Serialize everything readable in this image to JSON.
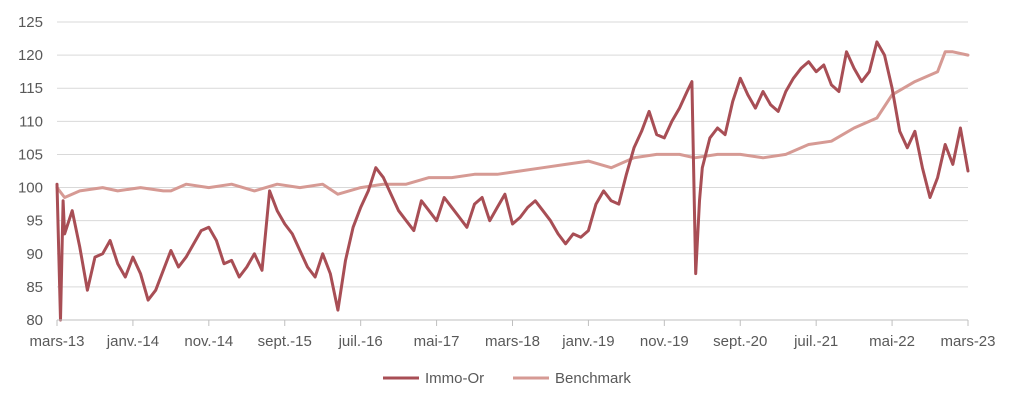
{
  "chart_data": {
    "type": "line",
    "title": "",
    "xlabel": "",
    "ylabel": "",
    "ylim": [
      80,
      125
    ],
    "yticks": [
      80,
      85,
      90,
      95,
      100,
      105,
      110,
      115,
      120,
      125
    ],
    "xlim": [
      "2013-03",
      "2023-03"
    ],
    "xticks": [
      {
        "date": "2013-03",
        "label": "mars-13"
      },
      {
        "date": "2014-01",
        "label": "janv.-14"
      },
      {
        "date": "2014-11",
        "label": "nov.-14"
      },
      {
        "date": "2015-09",
        "label": "sept.-15"
      },
      {
        "date": "2016-07",
        "label": "juil.-16"
      },
      {
        "date": "2017-05",
        "label": "mai-17"
      },
      {
        "date": "2018-03",
        "label": "mars-18"
      },
      {
        "date": "2019-01",
        "label": "janv.-19"
      },
      {
        "date": "2019-11",
        "label": "nov.-19"
      },
      {
        "date": "2020-09",
        "label": "sept.-20"
      },
      {
        "date": "2021-07",
        "label": "juil.-21"
      },
      {
        "date": "2022-05",
        "label": "mai-22"
      },
      {
        "date": "2023-03",
        "label": "mars-23"
      }
    ],
    "grid": "horizontal",
    "legend_position": "bottom",
    "series": [
      {
        "name": "Immo-Or",
        "color": "#a84e55",
        "points": [
          [
            "2013-03",
            100.5
          ],
          [
            "2013-03-15",
            80.0
          ],
          [
            "2013-03-25",
            98.0
          ],
          [
            "2013-04",
            93.0
          ],
          [
            "2013-05",
            96.5
          ],
          [
            "2013-06",
            91.0
          ],
          [
            "2013-07",
            84.5
          ],
          [
            "2013-08",
            89.5
          ],
          [
            "2013-09",
            90.0
          ],
          [
            "2013-10",
            92.0
          ],
          [
            "2013-11",
            88.5
          ],
          [
            "2013-12",
            86.5
          ],
          [
            "2014-01",
            89.5
          ],
          [
            "2014-02",
            87.0
          ],
          [
            "2014-03",
            83.0
          ],
          [
            "2014-04",
            84.5
          ],
          [
            "2014-05",
            87.5
          ],
          [
            "2014-06",
            90.5
          ],
          [
            "2014-07",
            88.0
          ],
          [
            "2014-08",
            89.5
          ],
          [
            "2014-09",
            91.5
          ],
          [
            "2014-10",
            93.5
          ],
          [
            "2014-11",
            94.0
          ],
          [
            "2014-12",
            92.0
          ],
          [
            "2015-01",
            88.5
          ],
          [
            "2015-02",
            89.0
          ],
          [
            "2015-03",
            86.5
          ],
          [
            "2015-04",
            88.0
          ],
          [
            "2015-05",
            90.0
          ],
          [
            "2015-06",
            87.5
          ],
          [
            "2015-07",
            99.5
          ],
          [
            "2015-08",
            96.5
          ],
          [
            "2015-09",
            94.5
          ],
          [
            "2015-10",
            93.0
          ],
          [
            "2015-11",
            90.5
          ],
          [
            "2015-12",
            88.0
          ],
          [
            "2016-01",
            86.5
          ],
          [
            "2016-02",
            90.0
          ],
          [
            "2016-03",
            87.0
          ],
          [
            "2016-04",
            81.5
          ],
          [
            "2016-05",
            89.0
          ],
          [
            "2016-06",
            94.0
          ],
          [
            "2016-07",
            97.0
          ],
          [
            "2016-08",
            99.5
          ],
          [
            "2016-09",
            103.0
          ],
          [
            "2016-10",
            101.5
          ],
          [
            "2016-11",
            99.0
          ],
          [
            "2016-12",
            96.5
          ],
          [
            "2017-01",
            95.0
          ],
          [
            "2017-02",
            93.5
          ],
          [
            "2017-03",
            98.0
          ],
          [
            "2017-04",
            96.5
          ],
          [
            "2017-05",
            95.0
          ],
          [
            "2017-06",
            98.5
          ],
          [
            "2017-07",
            97.0
          ],
          [
            "2017-08",
            95.5
          ],
          [
            "2017-09",
            94.0
          ],
          [
            "2017-10",
            97.5
          ],
          [
            "2017-11",
            98.5
          ],
          [
            "2017-12",
            95.0
          ],
          [
            "2018-01",
            97.0
          ],
          [
            "2018-02",
            99.0
          ],
          [
            "2018-03",
            94.5
          ],
          [
            "2018-04",
            95.5
          ],
          [
            "2018-05",
            97.0
          ],
          [
            "2018-06",
            98.0
          ],
          [
            "2018-07",
            96.5
          ],
          [
            "2018-08",
            95.0
          ],
          [
            "2018-09",
            93.0
          ],
          [
            "2018-10",
            91.5
          ],
          [
            "2018-11",
            93.0
          ],
          [
            "2018-12",
            92.5
          ],
          [
            "2019-01",
            93.5
          ],
          [
            "2019-02",
            97.5
          ],
          [
            "2019-03",
            99.5
          ],
          [
            "2019-04",
            98.0
          ],
          [
            "2019-05",
            97.5
          ],
          [
            "2019-06",
            102.0
          ],
          [
            "2019-07",
            106.0
          ],
          [
            "2019-08",
            108.5
          ],
          [
            "2019-09",
            111.5
          ],
          [
            "2019-10",
            108.0
          ],
          [
            "2019-11",
            107.5
          ],
          [
            "2019-12",
            110.0
          ],
          [
            "2020-01",
            112.0
          ],
          [
            "2020-02",
            114.5
          ],
          [
            "2020-02-20",
            116.0
          ],
          [
            "2020-03-05",
            87.0
          ],
          [
            "2020-03-20",
            98.0
          ],
          [
            "2020-04",
            103.0
          ],
          [
            "2020-05",
            107.5
          ],
          [
            "2020-06",
            109.0
          ],
          [
            "2020-07",
            108.0
          ],
          [
            "2020-08",
            113.0
          ],
          [
            "2020-09",
            116.5
          ],
          [
            "2020-10",
            114.0
          ],
          [
            "2020-11",
            112.0
          ],
          [
            "2020-12",
            114.5
          ],
          [
            "2021-01",
            112.5
          ],
          [
            "2021-02",
            111.5
          ],
          [
            "2021-03",
            114.5
          ],
          [
            "2021-04",
            116.5
          ],
          [
            "2021-05",
            118.0
          ],
          [
            "2021-06",
            119.0
          ],
          [
            "2021-07",
            117.5
          ],
          [
            "2021-08",
            118.5
          ],
          [
            "2021-09",
            115.5
          ],
          [
            "2021-10",
            114.5
          ],
          [
            "2021-11",
            120.5
          ],
          [
            "2021-12",
            118.0
          ],
          [
            "2022-01",
            116.0
          ],
          [
            "2022-02",
            117.5
          ],
          [
            "2022-03",
            122.0
          ],
          [
            "2022-04",
            120.0
          ],
          [
            "2022-05",
            115.0
          ],
          [
            "2022-06",
            108.5
          ],
          [
            "2022-07",
            106.0
          ],
          [
            "2022-08",
            108.5
          ],
          [
            "2022-09",
            103.0
          ],
          [
            "2022-10",
            98.5
          ],
          [
            "2022-11",
            101.5
          ],
          [
            "2022-12",
            106.5
          ],
          [
            "2023-01",
            103.5
          ],
          [
            "2023-02",
            109.0
          ],
          [
            "2023-03",
            102.5
          ]
        ]
      },
      {
        "name": "Benchmark",
        "color": "#d69a94",
        "points": [
          [
            "2013-03",
            100.0
          ],
          [
            "2013-04",
            98.5
          ],
          [
            "2013-06",
            99.5
          ],
          [
            "2013-09",
            100.0
          ],
          [
            "2013-11",
            99.5
          ],
          [
            "2014-02",
            100.0
          ],
          [
            "2014-05",
            99.5
          ],
          [
            "2014-06",
            99.5
          ],
          [
            "2014-08",
            100.5
          ],
          [
            "2014-11",
            100.0
          ],
          [
            "2015-02",
            100.5
          ],
          [
            "2015-05",
            99.5
          ],
          [
            "2015-08",
            100.5
          ],
          [
            "2015-11",
            100.0
          ],
          [
            "2016-02",
            100.5
          ],
          [
            "2016-04",
            99.0
          ],
          [
            "2016-07",
            100.0
          ],
          [
            "2016-10",
            100.5
          ],
          [
            "2017-01",
            100.5
          ],
          [
            "2017-04",
            101.5
          ],
          [
            "2017-07",
            101.5
          ],
          [
            "2017-10",
            102.0
          ],
          [
            "2018-01",
            102.0
          ],
          [
            "2018-04",
            102.5
          ],
          [
            "2018-07",
            103.0
          ],
          [
            "2018-10",
            103.5
          ],
          [
            "2019-01",
            104.0
          ],
          [
            "2019-04",
            103.0
          ],
          [
            "2019-07",
            104.5
          ],
          [
            "2019-10",
            105.0
          ],
          [
            "2020-01",
            105.0
          ],
          [
            "2020-03",
            104.5
          ],
          [
            "2020-06",
            105.0
          ],
          [
            "2020-09",
            105.0
          ],
          [
            "2020-12",
            104.5
          ],
          [
            "2021-03",
            105.0
          ],
          [
            "2021-06",
            106.5
          ],
          [
            "2021-09",
            107.0
          ],
          [
            "2021-12",
            109.0
          ],
          [
            "2022-03",
            110.5
          ],
          [
            "2022-05",
            114.0
          ],
          [
            "2022-08",
            116.0
          ],
          [
            "2022-11",
            117.5
          ],
          [
            "2022-12",
            120.5
          ],
          [
            "2023-01",
            120.5
          ],
          [
            "2023-03",
            120.0
          ]
        ]
      }
    ]
  }
}
